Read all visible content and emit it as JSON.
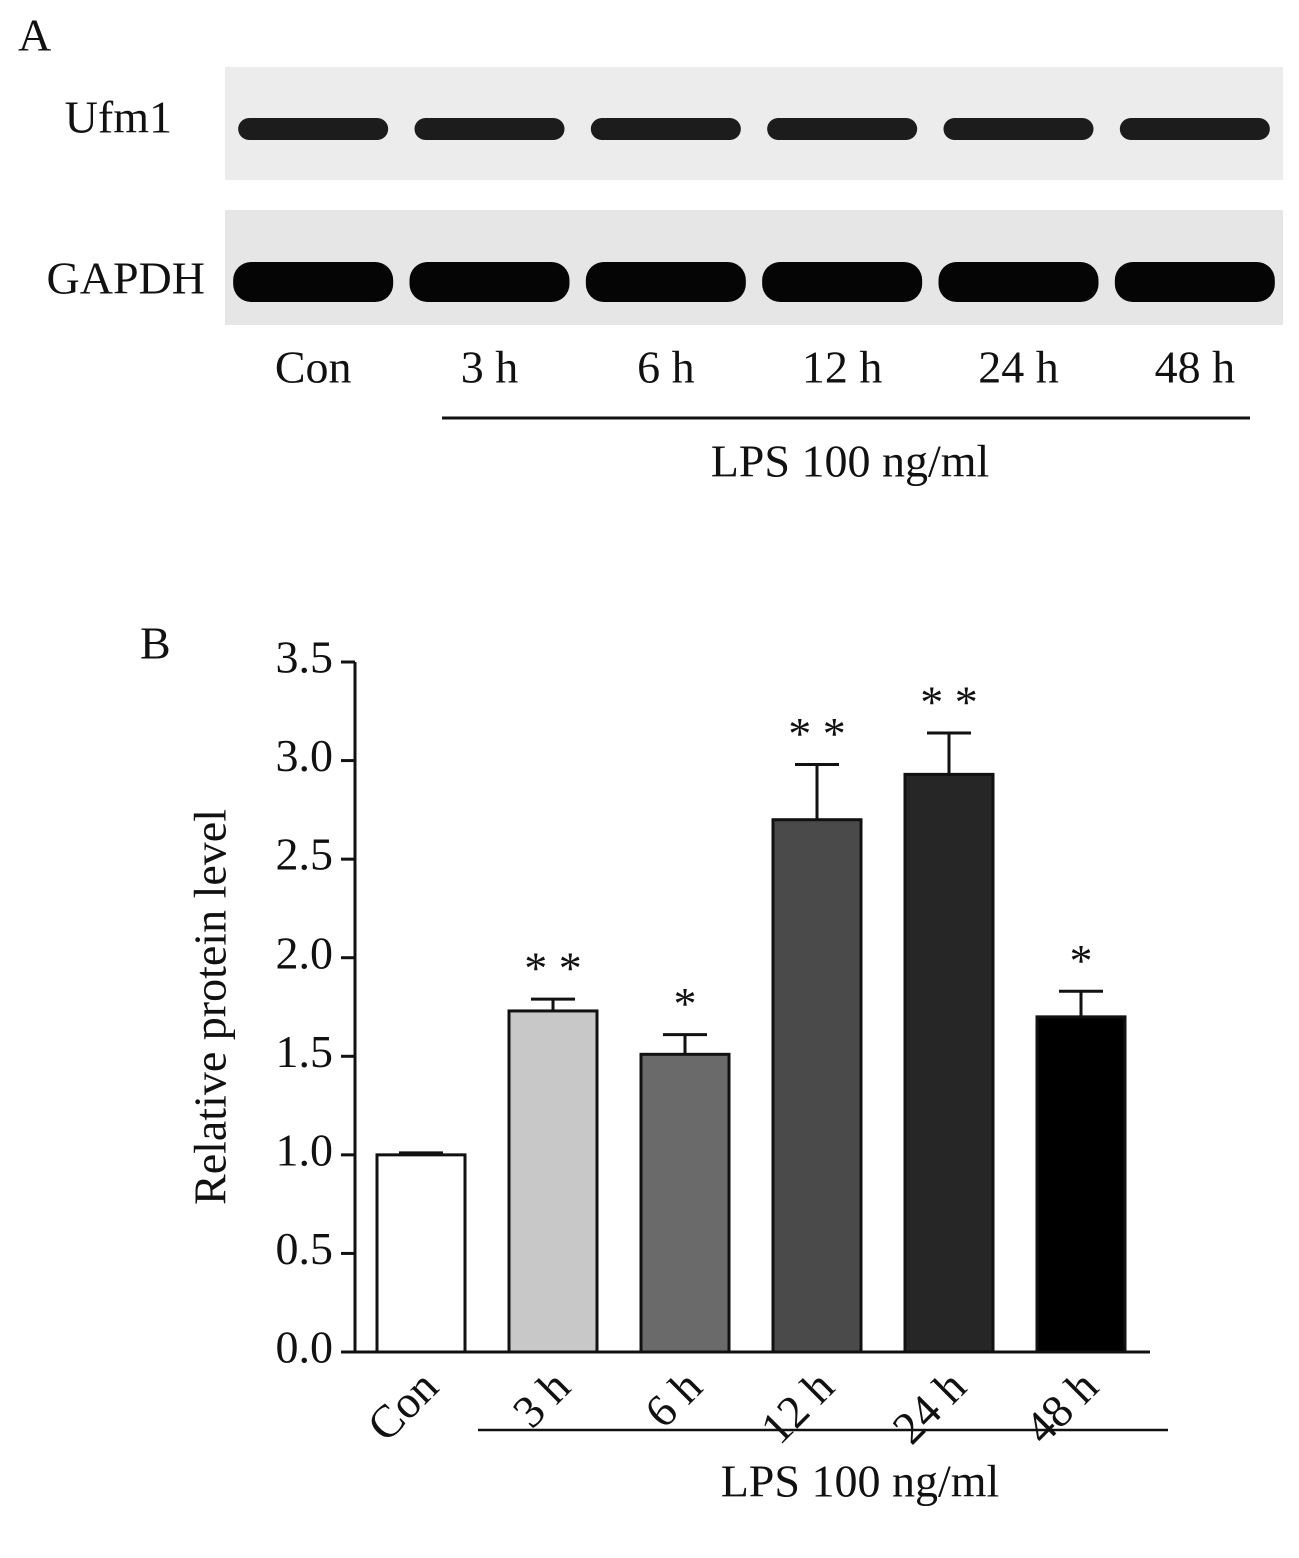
{
  "panel_a": {
    "label": "A",
    "rows": [
      "Ufm1",
      "GAPDH"
    ],
    "lanes": [
      "Con",
      "3 h",
      "6 h",
      "12 h",
      "24 h",
      "48 h"
    ],
    "treatment": "LPS 100 ng/ml"
  },
  "chart_data": {
    "type": "bar",
    "panel_label": "B",
    "ylabel": "Relative protein level",
    "categories": [
      "Con",
      "3 h",
      "6 h",
      "12 h",
      "24 h",
      "48 h"
    ],
    "values": [
      1.0,
      1.73,
      1.51,
      2.7,
      2.93,
      1.7
    ],
    "errors": [
      0.01,
      0.06,
      0.1,
      0.28,
      0.21,
      0.13
    ],
    "colors": [
      "#ffffff",
      "#c8c8c8",
      "#6a6a6a",
      "#4a4a4a",
      "#262626",
      "#000000"
    ],
    "annotations": [
      null,
      "* *",
      "*",
      "* *",
      "* *",
      "*"
    ],
    "group_label": "LPS 100 ng/ml",
    "ylim": [
      0,
      3.5
    ],
    "yticks": [
      {
        "value": 0,
        "label": "0.0"
      },
      0.5,
      {
        "value": 1,
        "label": "1.0"
      },
      1.5,
      {
        "value": 2,
        "label": "2.0"
      },
      2.5,
      {
        "value": 3,
        "label": "3.0"
      },
      3.5
    ]
  }
}
